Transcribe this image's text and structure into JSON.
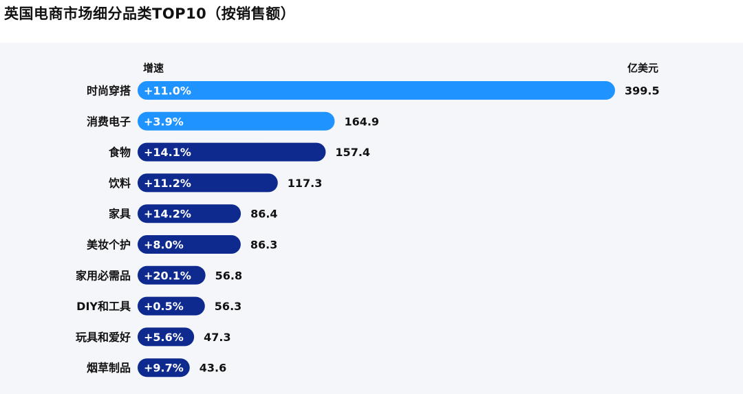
{
  "title": "英国电商市场细分品类TOP10（按销售额）",
  "colors": {
    "highlight_bar": "#1f93ff",
    "default_bar": "#0f2a8f",
    "panel_bg": "#f5f6fa"
  },
  "chart_data": {
    "type": "bar",
    "orientation": "horizontal",
    "growth_header": "增速",
    "value_unit": "亿美元",
    "categories": [
      "时尚穿搭",
      "消费电子",
      "食物",
      "饮料",
      "家具",
      "美妆个护",
      "家用必需品",
      "DIY和工具",
      "玩具和爱好",
      "烟草制品"
    ],
    "values": [
      399.5,
      164.9,
      157.4,
      117.3,
      86.4,
      86.3,
      56.8,
      56.3,
      47.3,
      43.6
    ],
    "value_labels": [
      "399.5",
      "164.9",
      "157.4",
      "117.3",
      "86.4",
      "86.3",
      "56.8",
      "56.3",
      "47.3",
      "43.6"
    ],
    "growth": [
      "+11.0%",
      "+3.9%",
      "+14.1%",
      "+11.2%",
      "+14.2%",
      "+8.0%",
      "+20.1%",
      "+0.5%",
      "+5.6%",
      "+9.7%"
    ],
    "highlighted": [
      true,
      true,
      false,
      false,
      false,
      false,
      false,
      false,
      false,
      false
    ]
  }
}
